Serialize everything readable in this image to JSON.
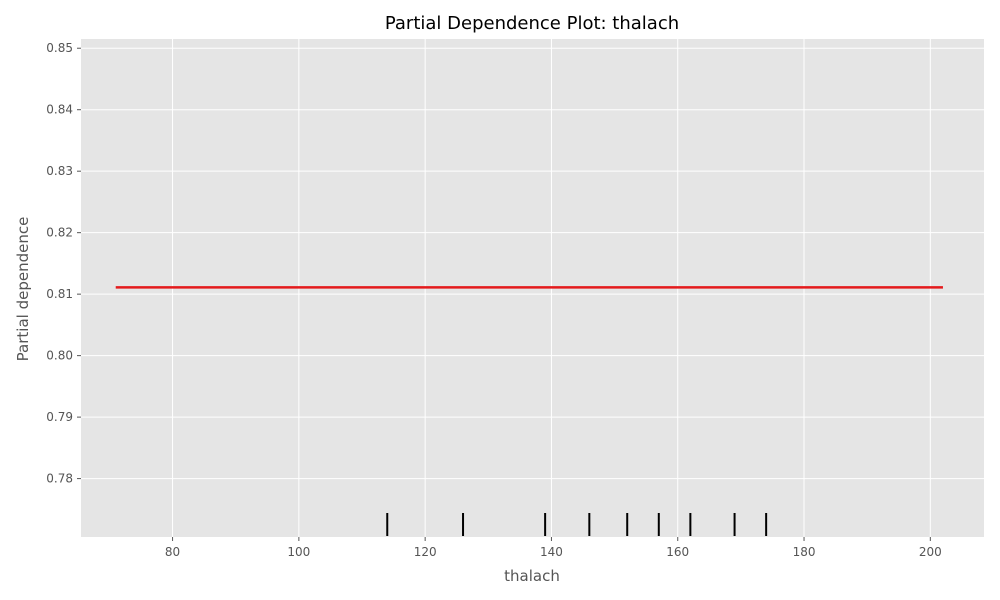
{
  "chart_data": {
    "type": "line",
    "title": "Partial Dependence Plot: thalach",
    "xlabel": "thalach",
    "ylabel": "Partial dependence",
    "xlim": [
      65.5,
      208.5
    ],
    "ylim": [
      0.7705,
      0.8515
    ],
    "xticks": [
      80,
      100,
      120,
      140,
      160,
      180,
      200
    ],
    "yticks": [
      0.78,
      0.79,
      0.8,
      0.81,
      0.82,
      0.83,
      0.84,
      0.85
    ],
    "grid": true,
    "series": [
      {
        "x": [
          71,
          202
        ],
        "y": [
          0.8111,
          0.8111
        ]
      }
    ],
    "rug": [
      114,
      126,
      139,
      146,
      152,
      157,
      162,
      169,
      174
    ],
    "colors": {
      "line": "#e41a1c",
      "rug": "#000000",
      "background": "#e5e5e5"
    }
  }
}
